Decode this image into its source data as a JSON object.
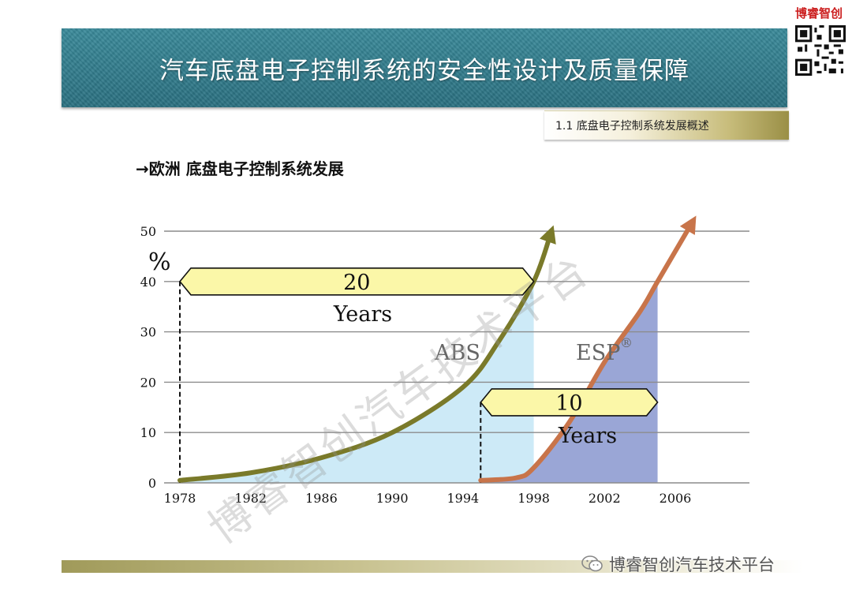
{
  "brand_top": "博睿智创",
  "title": "汽车底盘电子控制系统的安全性设计及质量保障",
  "section_tab": "1.1 底盘电子控制系统发展概述",
  "subheading": "→欧洲 底盘电子控制系统发展",
  "footer_brand": "博睿智创汽车技术平台",
  "watermark": "博睿智创汽车技术平台",
  "colors": {
    "abs_curve": "#7a7a2a",
    "abs_fill": "#cdeaf7",
    "esp_curve": "#c8744a",
    "esp_fill": "#9aa6d6",
    "arrow_band": "#fbf7a8",
    "title_band": "#2e7a8a"
  },
  "chart_data": {
    "type": "area",
    "xlabel": "",
    "ylabel": "%",
    "x_ticks": [
      "1978",
      "1982",
      "1986",
      "1990",
      "1994",
      "1998",
      "2002",
      "2006"
    ],
    "y_ticks": [
      "0",
      "10",
      "20",
      "30",
      "40",
      "50"
    ],
    "xlim": [
      1978,
      2008
    ],
    "ylim": [
      0,
      50
    ],
    "grid": true,
    "series": [
      {
        "name": "ABS",
        "x": [
          1978,
          1982,
          1986,
          1990,
          1994,
          1996,
          1998,
          1999
        ],
        "y": [
          0.5,
          2,
          5,
          10,
          19,
          28,
          40,
          50
        ]
      },
      {
        "name": "ESP®",
        "x": [
          1995,
          1997,
          1998,
          2000,
          2002,
          2004,
          2005,
          2007
        ],
        "y": [
          0.5,
          1,
          3,
          12,
          24,
          34,
          40,
          52
        ]
      }
    ],
    "annotations": [
      {
        "value": "20",
        "unit": "Years",
        "from": 1978,
        "to": 1998,
        "level": 40
      },
      {
        "value": "10",
        "unit": "Years",
        "from": 1995,
        "to": 2005,
        "level": 16
      }
    ]
  }
}
